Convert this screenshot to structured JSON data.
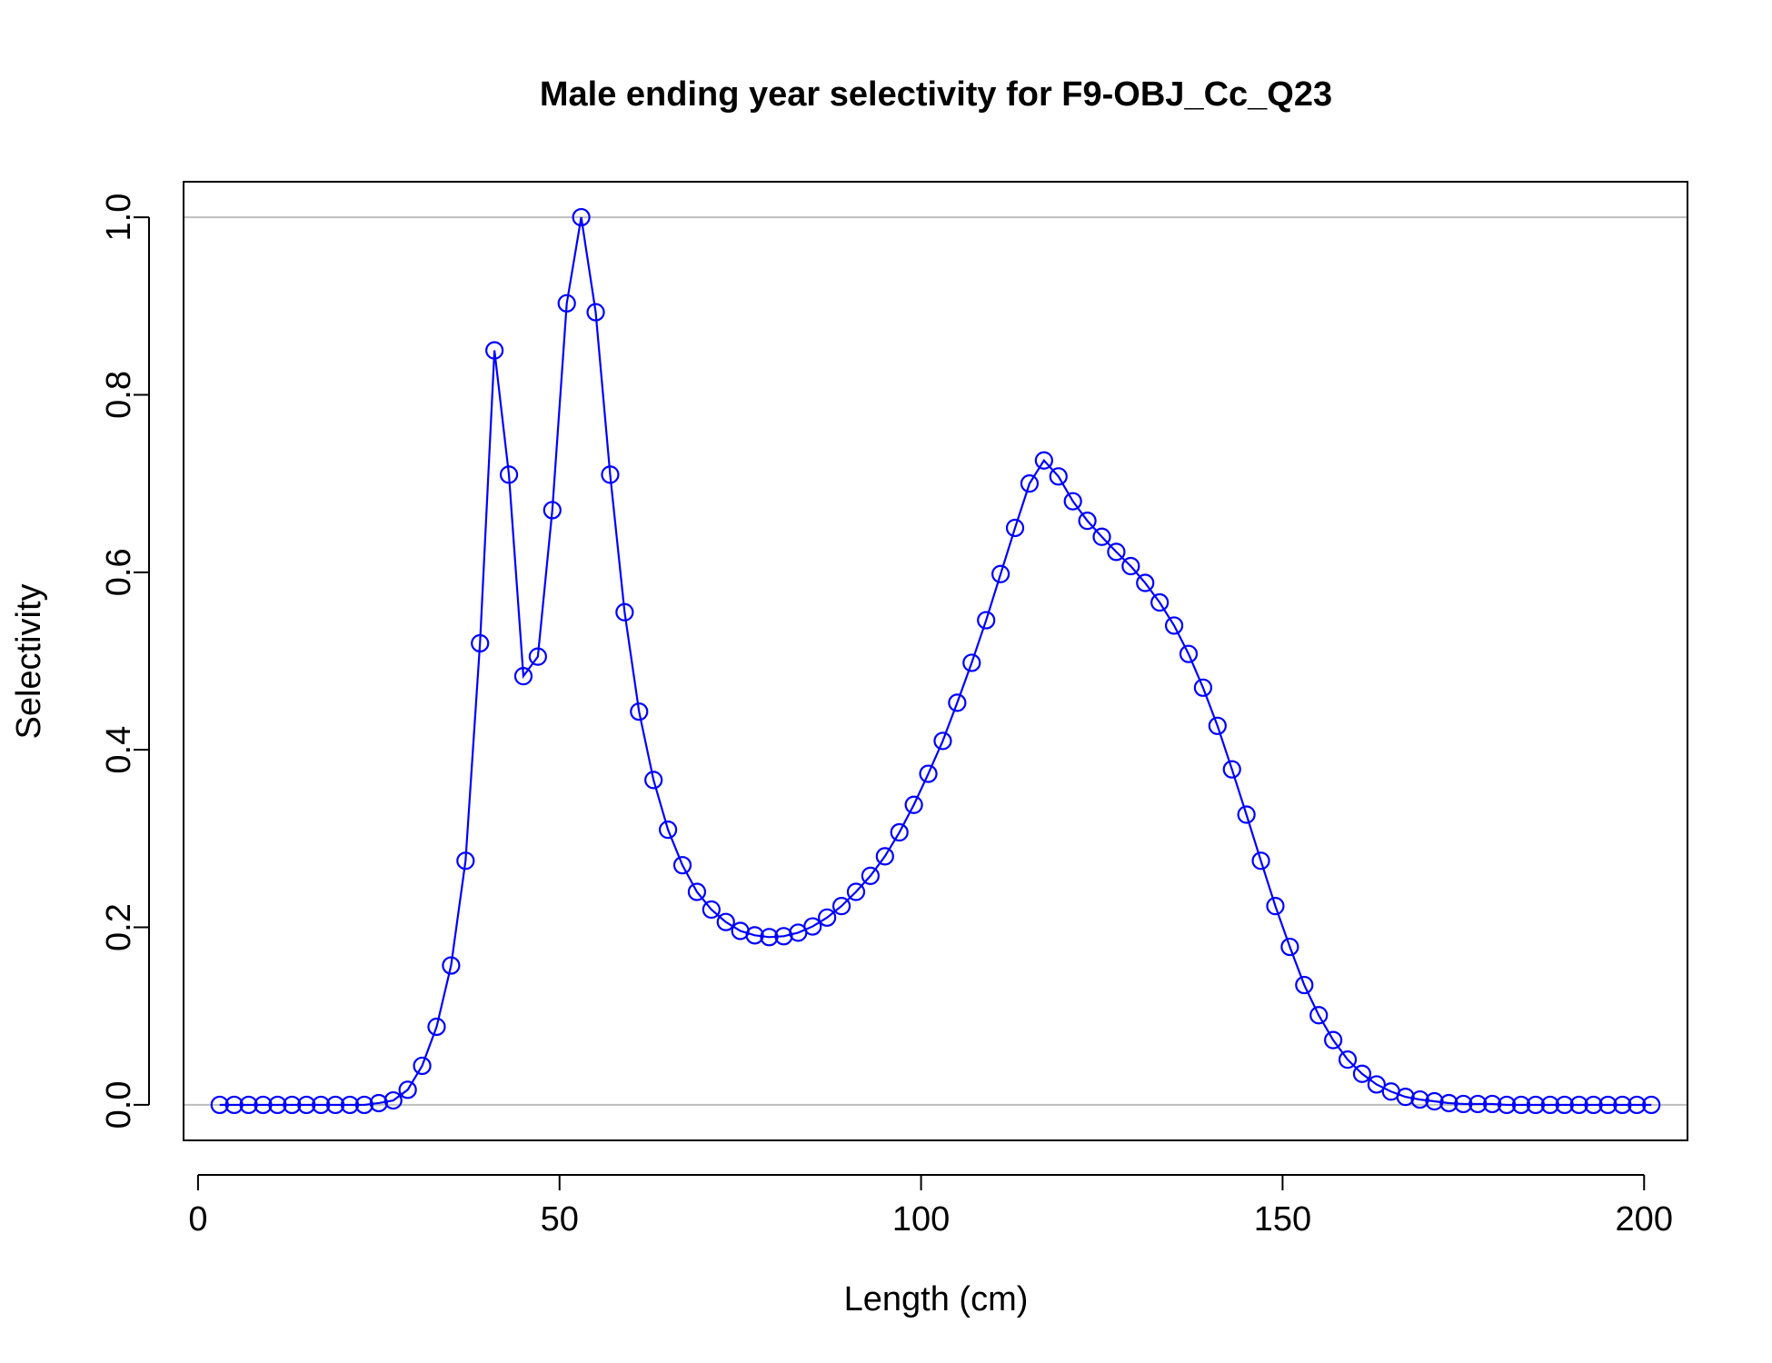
{
  "chart_data": {
    "type": "line",
    "title": "Male ending year selectivity for F9-OBJ_Cc_Q23",
    "xlabel": "Length (cm)",
    "ylabel": "Selectivity",
    "xlim": [
      -2,
      206
    ],
    "ylim": [
      -0.04,
      1.04
    ],
    "xticks": [
      0,
      50,
      100,
      150,
      200
    ],
    "yticks": [
      0.0,
      0.2,
      0.4,
      0.6,
      0.8,
      1.0
    ],
    "xtick_labels": [
      "0",
      "50",
      "100",
      "150",
      "200"
    ],
    "ytick_labels": [
      "0.0",
      "0.2",
      "0.4",
      "0.6",
      "0.8",
      "1.0"
    ],
    "reference_lines": [
      0,
      1
    ],
    "grid": false,
    "legend": "none",
    "marker": "open-circle",
    "colors": {
      "series": "#0000ff",
      "reference": "#bebebe",
      "axes": "#000000"
    },
    "x": [
      3,
      5,
      7,
      9,
      11,
      13,
      15,
      17,
      19,
      21,
      23,
      25,
      27,
      29,
      31,
      33,
      35,
      37,
      39,
      41,
      43,
      45,
      47,
      49,
      51,
      53,
      55,
      57,
      59,
      61,
      63,
      65,
      67,
      69,
      71,
      73,
      75,
      77,
      79,
      81,
      83,
      85,
      87,
      89,
      91,
      93,
      95,
      97,
      99,
      101,
      103,
      105,
      107,
      109,
      111,
      113,
      115,
      117,
      119,
      121,
      123,
      125,
      127,
      129,
      131,
      133,
      135,
      137,
      139,
      141,
      143,
      145,
      147,
      149,
      151,
      153,
      155,
      157,
      159,
      161,
      163,
      165,
      167,
      169,
      171,
      173,
      175,
      177,
      179,
      181,
      183,
      185,
      187,
      189,
      191,
      193,
      195,
      197,
      199,
      201
    ],
    "y": [
      0.0,
      0.0,
      0.0,
      0.0,
      0.0,
      0.0,
      0.0,
      0.0,
      0.0,
      0.0,
      0.0,
      0.002,
      0.005,
      0.017,
      0.044,
      0.088,
      0.157,
      0.275,
      0.52,
      0.85,
      0.71,
      0.483,
      0.505,
      0.67,
      0.903,
      1.0,
      0.893,
      0.71,
      0.555,
      0.443,
      0.366,
      0.31,
      0.27,
      0.24,
      0.22,
      0.206,
      0.196,
      0.191,
      0.189,
      0.19,
      0.194,
      0.201,
      0.211,
      0.224,
      0.24,
      0.258,
      0.28,
      0.307,
      0.338,
      0.373,
      0.41,
      0.453,
      0.498,
      0.546,
      0.598,
      0.65,
      0.7,
      0.726,
      0.708,
      0.68,
      0.658,
      0.64,
      0.623,
      0.607,
      0.588,
      0.566,
      0.54,
      0.508,
      0.47,
      0.427,
      0.378,
      0.327,
      0.275,
      0.224,
      0.178,
      0.135,
      0.101,
      0.073,
      0.051,
      0.035,
      0.023,
      0.015,
      0.009,
      0.006,
      0.004,
      0.002,
      0.001,
      0.001,
      0.001,
      0.0,
      0.0,
      0.0,
      0.0,
      0.0,
      0.0,
      0.0,
      0.0,
      0.0,
      0.0,
      0.0
    ]
  }
}
